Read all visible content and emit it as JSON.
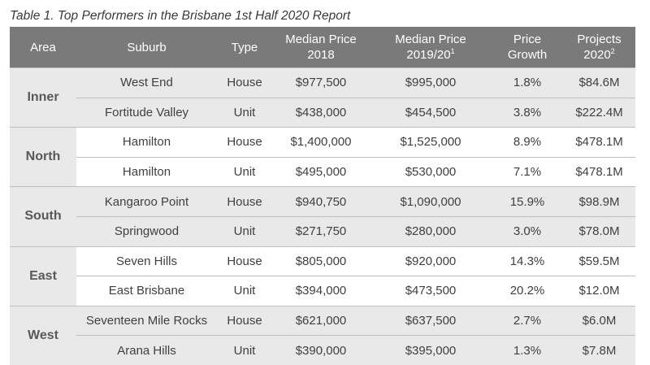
{
  "caption": "Table 1. Top Performers in the Brisbane 1st Half 2020 Report",
  "headers": {
    "area": "Area",
    "suburb": "Suburb",
    "type": "Type",
    "median_2018_line1": "Median Price",
    "median_2018_line2": "2018",
    "median_2019_line1": "Median Price",
    "median_2019_line2": "2019/20",
    "median_2019_sup": "1",
    "growth_line1": "Price",
    "growth_line2": "Growth",
    "projects_line1": "Projects",
    "projects_line2": "2020",
    "projects_sup": "2"
  },
  "groups": [
    {
      "area": "Inner",
      "rows": [
        {
          "suburb": "West End",
          "type": "House",
          "median_2018": "$977,500",
          "median_2019": "$995,000",
          "growth": "1.8%",
          "projects": "$84.6M"
        },
        {
          "suburb": "Fortitude Valley",
          "type": "Unit",
          "median_2018": "$438,000",
          "median_2019": "$454,500",
          "growth": "3.8%",
          "projects": "$222.4M"
        }
      ]
    },
    {
      "area": "North",
      "rows": [
        {
          "suburb": "Hamilton",
          "type": "House",
          "median_2018": "$1,400,000",
          "median_2019": "$1,525,000",
          "growth": "8.9%",
          "projects": "$478.1M"
        },
        {
          "suburb": "Hamilton",
          "type": "Unit",
          "median_2018": "$495,000",
          "median_2019": "$530,000",
          "growth": "7.1%",
          "projects": "$478.1M"
        }
      ]
    },
    {
      "area": "South",
      "rows": [
        {
          "suburb": "Kangaroo Point",
          "type": "House",
          "median_2018": "$940,750",
          "median_2019": "$1,090,000",
          "growth": "15.9%",
          "projects": "$98.9M"
        },
        {
          "suburb": "Springwood",
          "type": "Unit",
          "median_2018": "$271,750",
          "median_2019": "$280,000",
          "growth": "3.0%",
          "projects": "$78.0M"
        }
      ]
    },
    {
      "area": "East",
      "rows": [
        {
          "suburb": "Seven Hills",
          "type": "House",
          "median_2018": "$805,000",
          "median_2019": "$920,000",
          "growth": "14.3%",
          "projects": "$59.5M"
        },
        {
          "suburb": "East Brisbane",
          "type": "Unit",
          "median_2018": "$394,000",
          "median_2019": "$473,500",
          "growth": "20.2%",
          "projects": "$12.0M"
        }
      ]
    },
    {
      "area": "West",
      "rows": [
        {
          "suburb": "Seventeen Mile Rocks",
          "type": "House",
          "median_2018": "$621,000",
          "median_2019": "$637,500",
          "growth": "2.7%",
          "projects": "$6.0M"
        },
        {
          "suburb": "Arana Hills",
          "type": "Unit",
          "median_2018": "$390,000",
          "median_2019": "$395,000",
          "growth": "1.3%",
          "projects": "$7.8M"
        }
      ]
    }
  ]
}
